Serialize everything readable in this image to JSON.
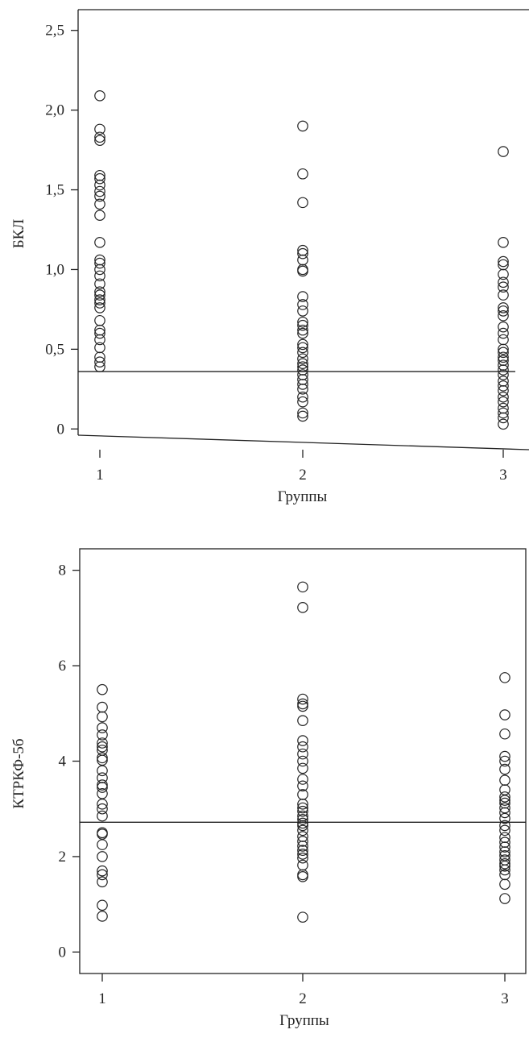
{
  "chart_data": [
    {
      "type": "scatter",
      "xlabel": "Группы",
      "ylabel": "БКЛ",
      "x_ticks": [
        "1",
        "2",
        "3"
      ],
      "y_ticks": [
        "0",
        "0,5",
        "1,0",
        "1,5",
        "2,0",
        "2,5"
      ],
      "y_tick_values": [
        0,
        0.5,
        1.0,
        1.5,
        2.0,
        2.5
      ],
      "ylim": [
        -0.13,
        2.63
      ],
      "reference_line": 0.36,
      "grid": false,
      "series": [
        {
          "x": 1,
          "values": [
            2.09,
            1.88,
            1.83,
            1.81,
            1.59,
            1.57,
            1.53,
            1.49,
            1.46,
            1.41,
            1.34,
            1.17,
            1.06,
            1.04,
            1.0,
            0.96,
            0.91,
            0.86,
            0.84,
            0.81,
            0.79,
            0.76,
            0.68,
            0.62,
            0.6,
            0.56,
            0.51,
            0.45,
            0.42,
            0.39
          ]
        },
        {
          "x": 2,
          "values": [
            1.9,
            1.6,
            1.42,
            1.12,
            1.1,
            1.06,
            1.0,
            0.99,
            0.83,
            0.78,
            0.74,
            0.67,
            0.65,
            0.62,
            0.6,
            0.53,
            0.51,
            0.48,
            0.44,
            0.41,
            0.39,
            0.37,
            0.34,
            0.31,
            0.28,
            0.25,
            0.2,
            0.17,
            0.1,
            0.08
          ]
        },
        {
          "x": 3,
          "values": [
            1.74,
            1.17,
            1.05,
            1.03,
            0.97,
            0.92,
            0.89,
            0.84,
            0.76,
            0.74,
            0.71,
            0.64,
            0.6,
            0.56,
            0.5,
            0.48,
            0.45,
            0.43,
            0.4,
            0.37,
            0.34,
            0.3,
            0.27,
            0.24,
            0.2,
            0.17,
            0.13,
            0.1,
            0.07,
            0.03
          ]
        }
      ]
    },
    {
      "type": "scatter",
      "xlabel": "Группы",
      "ylabel": "КТРКФ-5б",
      "x_ticks": [
        "1",
        "2",
        "3"
      ],
      "y_ticks": [
        "0",
        "2",
        "4",
        "6",
        "8"
      ],
      "y_tick_values": [
        0,
        2,
        4,
        6,
        8
      ],
      "ylim": [
        -0.45,
        8.45
      ],
      "reference_line": 2.72,
      "grid": false,
      "series": [
        {
          "x": 1,
          "values": [
            5.5,
            5.13,
            4.93,
            4.7,
            4.55,
            4.38,
            4.3,
            4.23,
            4.07,
            4.02,
            3.8,
            3.65,
            3.5,
            3.45,
            3.32,
            3.1,
            3.0,
            2.85,
            2.5,
            2.47,
            2.25,
            2.0,
            1.7,
            1.62,
            1.47,
            0.98,
            0.75
          ]
        },
        {
          "x": 2,
          "values": [
            7.65,
            7.22,
            5.3,
            5.2,
            5.15,
            4.85,
            4.43,
            4.3,
            4.15,
            4.0,
            3.85,
            3.62,
            3.48,
            3.3,
            3.1,
            3.02,
            2.95,
            2.85,
            2.78,
            2.7,
            2.65,
            2.55,
            2.42,
            2.32,
            2.22,
            2.13,
            2.05,
            1.97,
            1.82,
            1.62,
            1.58,
            0.73
          ]
        },
        {
          "x": 3,
          "values": [
            5.75,
            4.97,
            4.57,
            4.1,
            4.0,
            3.83,
            3.6,
            3.4,
            3.25,
            3.18,
            3.12,
            3.02,
            2.92,
            2.8,
            2.65,
            2.55,
            2.4,
            2.3,
            2.2,
            2.1,
            2.02,
            1.93,
            1.85,
            1.8,
            1.72,
            1.62,
            1.42,
            1.12
          ]
        }
      ]
    }
  ]
}
